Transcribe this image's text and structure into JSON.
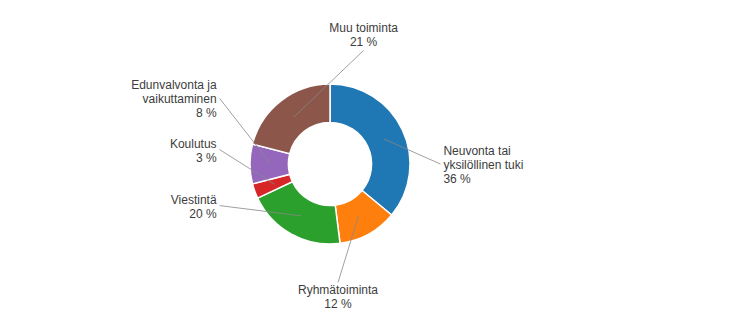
{
  "chart_data": {
    "type": "donut",
    "categories": [
      "Neuvonta tai\nyksilöllinen tuki",
      "Ryhmätoiminta",
      "Viestintä",
      "Koulutus",
      "Edunvalvonta ja\nvaikuttaminen",
      "Muu toiminta"
    ],
    "values": [
      36,
      12,
      20,
      3,
      8,
      21
    ],
    "value_labels": [
      "36 %",
      "12 %",
      "20 %",
      "3 %",
      "8 %",
      "21 %"
    ],
    "data_labels": true
  }
}
